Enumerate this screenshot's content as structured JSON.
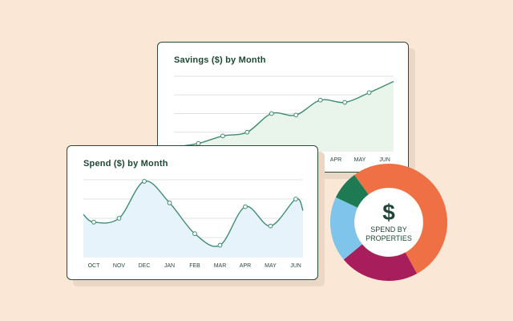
{
  "chart_data": [
    {
      "type": "area",
      "title": "Savings ($) by Month",
      "categories": [
        "APR",
        "MAY",
        "JUN"
      ],
      "x": [
        0,
        1,
        2,
        3,
        4,
        5,
        6,
        7,
        8,
        9
      ],
      "series": [
        {
          "values": [
            5,
            10,
            20,
            25,
            50,
            48,
            68,
            65,
            78,
            93
          ]
        }
      ],
      "ylim": [
        0,
        100
      ],
      "grid": true,
      "colors": {
        "line": "#3f8c72",
        "fill": "#e9f4ea"
      }
    },
    {
      "type": "area",
      "title": "Spend ($) by Month",
      "categories": [
        "OCT",
        "NOV",
        "DEC",
        "JAN",
        "FEB",
        "MAR",
        "APR",
        "MAY",
        "JUN"
      ],
      "series": [
        {
          "values": [
            45,
            50,
            98,
            70,
            30,
            15,
            65,
            40,
            75
          ]
        }
      ],
      "ylim": [
        0,
        100
      ],
      "grid": true,
      "colors": {
        "line": "#3f8c72",
        "fill": "#e7f3fb"
      }
    },
    {
      "type": "pie",
      "donut": true,
      "center_symbol": "$",
      "center_label": "SPEND BY PROPERTIES",
      "slices": [
        {
          "value": 42,
          "color": "#ef7044"
        },
        {
          "value": 22,
          "color": "#a81d5c"
        },
        {
          "value": 18,
          "color": "#7ec4eb"
        },
        {
          "value": 8,
          "color": "#1e7a52"
        },
        {
          "value": 10,
          "color": "#ef7044"
        }
      ]
    }
  ]
}
